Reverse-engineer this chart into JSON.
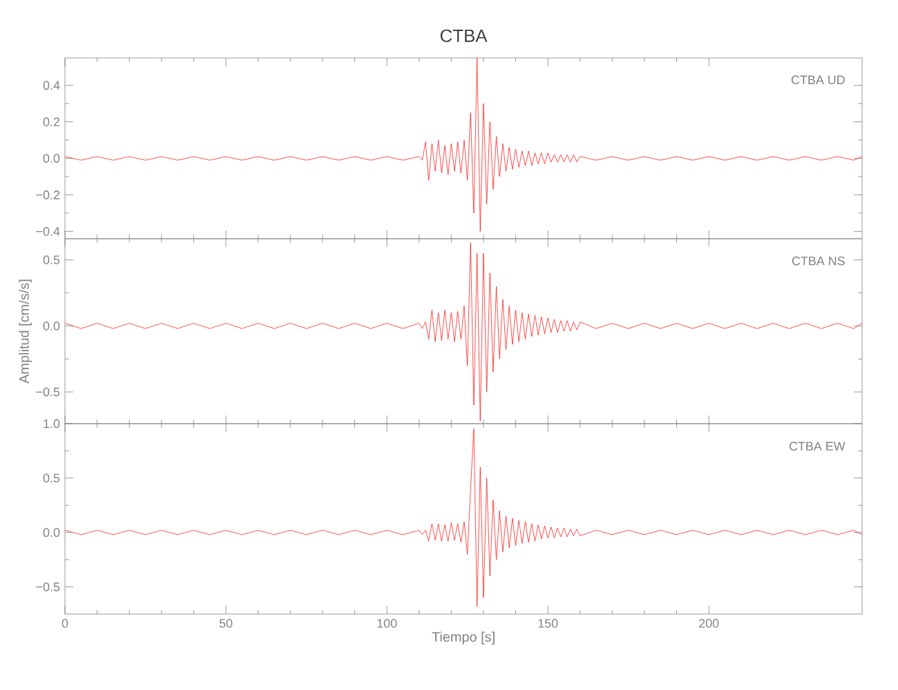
{
  "chart_data": [
    {
      "type": "line",
      "title": "CTBA",
      "xlim": [
        0,
        247.6
      ],
      "xticks": [
        0,
        50,
        100,
        150,
        200
      ],
      "ylim": [
        -0.44,
        0.55
      ],
      "yticks": [
        {
          "value": 0.4,
          "label": "0.4"
        },
        {
          "value": 0.2,
          "label": "0.2"
        },
        {
          "value": 0,
          "label": "0.0"
        },
        {
          "value": -0.2,
          "label": "−0.2"
        },
        {
          "value": -0.4,
          "label": "−0.4"
        }
      ],
      "tick_labels": "y",
      "annotations": [
        "CTBA   UD"
      ],
      "x": [
        0,
        5,
        10,
        15,
        20,
        25,
        30,
        35,
        40,
        45,
        50,
        55,
        60,
        65,
        70,
        75,
        80,
        85,
        90,
        95,
        100,
        105,
        110,
        111,
        112,
        113,
        114,
        115,
        116,
        117,
        118,
        119,
        120,
        121,
        122,
        123,
        124,
        125,
        126,
        127,
        128,
        129,
        130,
        131,
        132,
        133,
        134,
        135,
        136,
        137,
        138,
        139,
        140,
        141,
        142,
        143,
        144,
        145,
        146,
        147,
        148,
        149,
        150,
        151,
        152,
        153,
        154,
        155,
        156,
        157,
        158,
        159,
        160,
        165,
        170,
        175,
        180,
        185,
        190,
        195,
        200,
        205,
        210,
        215,
        220,
        225,
        230,
        235,
        240,
        245,
        247.6
      ],
      "series": [
        {
          "color": "#ff0000",
          "values": [
            0.01,
            -0.01,
            0.01,
            -0.01,
            0.01,
            -0.01,
            0.01,
            -0.01,
            0.01,
            -0.01,
            0.01,
            -0.01,
            0.01,
            -0.01,
            0.01,
            -0.01,
            0.01,
            -0.01,
            0.01,
            -0.01,
            0.01,
            -0.01,
            0.01,
            -0.01,
            0.09,
            -0.12,
            0.08,
            -0.07,
            0.1,
            -0.08,
            0.07,
            -0.09,
            0.08,
            -0.07,
            0.09,
            -0.08,
            0.1,
            -0.12,
            0.25,
            -0.3,
            0.55,
            -0.4,
            0.3,
            -0.25,
            0.2,
            -0.17,
            0.12,
            -0.1,
            0.08,
            -0.07,
            0.06,
            -0.06,
            0.05,
            -0.05,
            0.04,
            -0.04,
            0.04,
            -0.04,
            0.03,
            -0.03,
            0.03,
            -0.03,
            0.03,
            -0.02,
            0.02,
            -0.02,
            0.02,
            -0.02,
            0.02,
            -0.02,
            0.02,
            -0.02,
            0.01,
            -0.01,
            0.01,
            -0.01,
            0.01,
            -0.01,
            0.01,
            -0.01,
            0.01,
            -0.01,
            0.01,
            -0.01,
            0.01,
            -0.01,
            0.01,
            -0.01,
            0.01,
            -0.01,
            0.01
          ]
        }
      ]
    },
    {
      "type": "line",
      "ylabel": "Amplitud [cm/s/s]",
      "xlim": [
        0,
        247.6
      ],
      "xticks": [
        0,
        50,
        100,
        150,
        200
      ],
      "ylim": [
        -0.74,
        0.66
      ],
      "yticks": [
        {
          "value": 0.5,
          "label": "0.5"
        },
        {
          "value": 0,
          "label": "0.0"
        },
        {
          "value": -0.5,
          "label": "−0.5"
        }
      ],
      "tick_labels": "y",
      "annotations": [
        "CTBA   NS"
      ],
      "x": [
        0,
        5,
        10,
        15,
        20,
        25,
        30,
        35,
        40,
        45,
        50,
        55,
        60,
        65,
        70,
        75,
        80,
        85,
        90,
        95,
        100,
        105,
        110,
        111,
        112,
        113,
        114,
        115,
        116,
        117,
        118,
        119,
        120,
        121,
        122,
        123,
        124,
        125,
        126,
        127,
        128,
        129,
        130,
        131,
        132,
        133,
        134,
        135,
        136,
        137,
        138,
        139,
        140,
        141,
        142,
        143,
        144,
        145,
        146,
        147,
        148,
        149,
        150,
        151,
        152,
        153,
        154,
        155,
        156,
        157,
        158,
        159,
        160,
        165,
        170,
        175,
        180,
        185,
        190,
        195,
        200,
        205,
        210,
        215,
        220,
        225,
        230,
        235,
        240,
        245,
        247.6
      ],
      "series": [
        {
          "color": "#ff0000",
          "values": [
            0.02,
            -0.02,
            0.02,
            -0.02,
            0.02,
            -0.02,
            0.02,
            -0.02,
            0.02,
            -0.02,
            0.02,
            -0.02,
            0.02,
            -0.02,
            0.02,
            -0.02,
            0.02,
            -0.02,
            0.02,
            -0.02,
            0.02,
            -0.02,
            0.02,
            -0.02,
            0.03,
            -0.1,
            0.12,
            -0.12,
            0.1,
            -0.11,
            0.12,
            -0.1,
            0.1,
            -0.12,
            0.11,
            -0.1,
            0.15,
            -0.3,
            0.63,
            -0.6,
            0.55,
            -0.72,
            0.55,
            -0.5,
            0.4,
            -0.35,
            0.3,
            -0.25,
            0.2,
            -0.18,
            0.15,
            -0.14,
            0.12,
            -0.12,
            0.1,
            -0.1,
            0.09,
            -0.08,
            0.08,
            -0.07,
            0.07,
            -0.06,
            0.06,
            -0.05,
            0.05,
            -0.05,
            0.04,
            -0.04,
            0.04,
            -0.04,
            0.03,
            -0.03,
            0.03,
            -0.02,
            0.02,
            -0.02,
            0.02,
            -0.02,
            0.02,
            -0.02,
            0.02,
            -0.02,
            0.02,
            -0.02,
            0.02,
            -0.02,
            0.02,
            -0.02,
            0.02,
            -0.02,
            0.02
          ]
        }
      ]
    },
    {
      "type": "line",
      "xlabel": "Tiempo [s]",
      "xlim": [
        0,
        247.6
      ],
      "xticks": [
        0,
        50,
        100,
        150,
        200
      ],
      "ylim": [
        -0.75,
        1.0
      ],
      "yticks": [
        {
          "value": 1,
          "label": "1.0"
        },
        {
          "value": 0.5,
          "label": "0.5"
        },
        {
          "value": 0,
          "label": "0.0"
        },
        {
          "value": -0.5,
          "label": "−0.5"
        }
      ],
      "annotations": [
        "CTBA   EW"
      ],
      "x": [
        0,
        5,
        10,
        15,
        20,
        25,
        30,
        35,
        40,
        45,
        50,
        55,
        60,
        65,
        70,
        75,
        80,
        85,
        90,
        95,
        100,
        105,
        110,
        111,
        112,
        113,
        114,
        115,
        116,
        117,
        118,
        119,
        120,
        121,
        122,
        123,
        124,
        125,
        126,
        127,
        128,
        129,
        130,
        131,
        132,
        133,
        134,
        135,
        136,
        137,
        138,
        139,
        140,
        141,
        142,
        143,
        144,
        145,
        146,
        147,
        148,
        149,
        150,
        151,
        152,
        153,
        154,
        155,
        156,
        157,
        158,
        159,
        160,
        165,
        170,
        175,
        180,
        185,
        190,
        195,
        200,
        205,
        210,
        215,
        220,
        225,
        230,
        235,
        240,
        245,
        247.6
      ],
      "series": [
        {
          "color": "#ff0000",
          "values": [
            0.02,
            -0.02,
            0.02,
            -0.02,
            0.02,
            -0.02,
            0.02,
            -0.02,
            0.02,
            -0.02,
            0.02,
            -0.02,
            0.02,
            -0.02,
            0.02,
            -0.02,
            0.02,
            -0.02,
            0.02,
            -0.02,
            0.02,
            -0.02,
            0.02,
            -0.02,
            0.02,
            -0.08,
            0.08,
            -0.07,
            0.08,
            -0.08,
            0.07,
            -0.08,
            0.09,
            -0.07,
            0.08,
            -0.09,
            0.1,
            -0.2,
            0.4,
            0.95,
            -0.68,
            0.6,
            -0.6,
            0.5,
            -0.4,
            0.3,
            -0.25,
            0.2,
            -0.18,
            0.15,
            -0.14,
            0.13,
            -0.12,
            0.11,
            -0.1,
            0.1,
            -0.09,
            0.08,
            -0.08,
            0.07,
            -0.06,
            0.06,
            -0.05,
            0.05,
            -0.05,
            0.04,
            -0.04,
            0.04,
            -0.04,
            0.03,
            -0.03,
            0.03,
            -0.03,
            0.02,
            -0.02,
            0.02,
            -0.02,
            0.02,
            -0.02,
            0.02,
            -0.02,
            0.02,
            -0.02,
            0.02,
            -0.02,
            0.02,
            -0.02,
            0.02,
            -0.02,
            0.02,
            -0.02
          ]
        }
      ]
    }
  ]
}
